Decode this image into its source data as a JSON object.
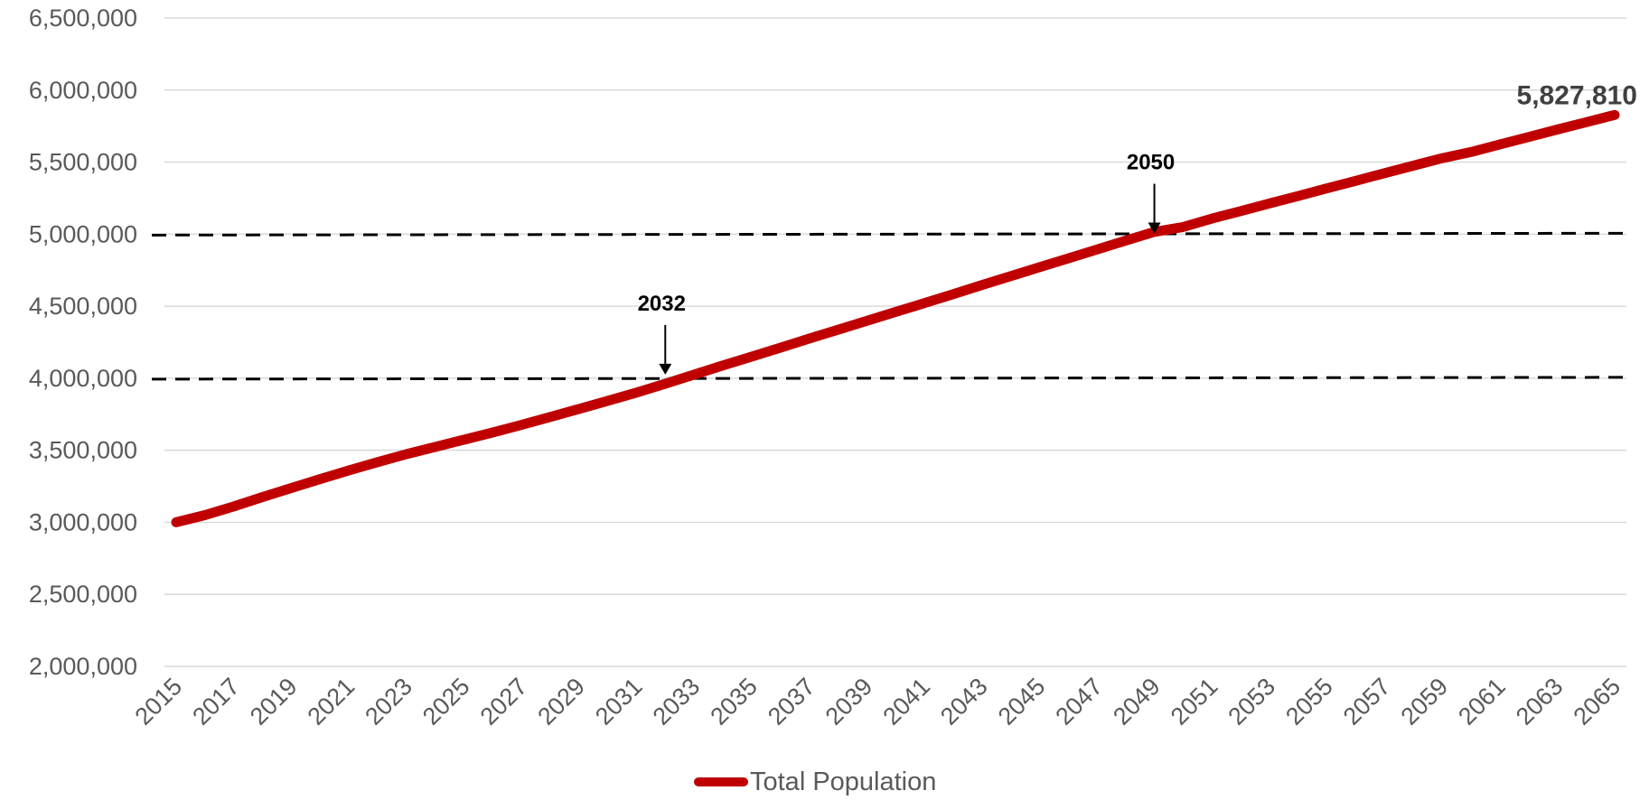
{
  "chart_data": {
    "type": "line",
    "title": "",
    "xlabel": "",
    "ylabel": "",
    "x": [
      2015,
      2016,
      2017,
      2018,
      2019,
      2020,
      2021,
      2022,
      2023,
      2024,
      2025,
      2026,
      2027,
      2028,
      2029,
      2030,
      2031,
      2032,
      2033,
      2034,
      2035,
      2036,
      2037,
      2038,
      2039,
      2040,
      2041,
      2042,
      2043,
      2044,
      2045,
      2046,
      2047,
      2048,
      2049,
      2050,
      2051,
      2052,
      2053,
      2054,
      2055,
      2056,
      2057,
      2058,
      2059,
      2060,
      2061,
      2062,
      2063,
      2064,
      2065
    ],
    "x_tick_labels": [
      "2015",
      "2017",
      "2019",
      "2021",
      "2023",
      "2025",
      "2027",
      "2029",
      "2031",
      "2033",
      "2035",
      "2037",
      "2039",
      "2041",
      "2043",
      "2045",
      "2047",
      "2049",
      "2051",
      "2053",
      "2055",
      "2057",
      "2059",
      "2061",
      "2063",
      "2065"
    ],
    "ylim": [
      2000000,
      6500000
    ],
    "y_tick_labels": [
      "2,000,000",
      "2,500,000",
      "3,000,000",
      "3,500,000",
      "4,000,000",
      "4,500,000",
      "5,000,000",
      "5,500,000",
      "6,000,000",
      "6,500,000"
    ],
    "y_ticks": [
      2000000,
      2500000,
      3000000,
      3500000,
      4000000,
      4500000,
      5000000,
      5500000,
      6000000,
      6500000
    ],
    "grid": true,
    "legend_position": "bottom",
    "series": [
      {
        "name": "Total Population",
        "color": "#c00000",
        "values": [
          3000000,
          3050000,
          3110000,
          3175000,
          3238000,
          3300000,
          3360000,
          3418000,
          3473000,
          3523000,
          3573000,
          3623000,
          3676000,
          3731000,
          3787000,
          3843000,
          3900000,
          3962000,
          4025000,
          4088000,
          4150000,
          4212000,
          4275000,
          4336000,
          4398000,
          4460000,
          4521000,
          4583000,
          4646000,
          4708000,
          4770000,
          4831000,
          4893000,
          4955000,
          5016000,
          5050000,
          5108000,
          5160000,
          5213000,
          5265000,
          5318000,
          5370000,
          5423000,
          5475000,
          5527000,
          5570000,
          5622000,
          5674000,
          5726000,
          5777000,
          5827810
        ]
      }
    ],
    "reference_lines": [
      {
        "y": 4000000,
        "style": "dashed",
        "color": "#000000"
      },
      {
        "y": 5000000,
        "style": "dashed",
        "color": "#000000"
      }
    ],
    "annotations": [
      {
        "text": "2032",
        "x": 2032,
        "y": 4000000
      },
      {
        "text": "2050",
        "x": 2049,
        "y": 4980000
      }
    ],
    "end_label": "5,827,810"
  }
}
